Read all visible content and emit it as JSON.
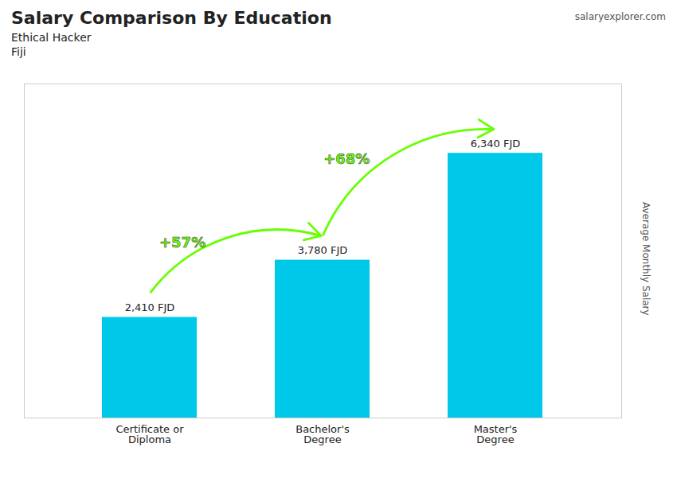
{
  "chart_data": {
    "type": "bar",
    "title": "Salary Comparison By Education",
    "subtitle": [
      "Ethical Hacker",
      "Fiji"
    ],
    "categories": [
      "Certificate or\nDiploma",
      "Bachelor's\nDegree",
      "Master's\nDegree"
    ],
    "values": [
      2410,
      3780,
      6340
    ],
    "value_labels": [
      "2,410 FJD",
      "3,780 FJD",
      "6,340 FJD"
    ],
    "data_labels": true,
    "color": "#00c8e8",
    "ylabel": "Average Monthly Salary",
    "ylim": [
      0,
      8000
    ],
    "grid": false,
    "tick_labels": "x",
    "annotations": [
      {
        "text": "+57%",
        "from": "Certificate or\nDiploma",
        "to": "Bachelor's\nDegree",
        "color": "#66ff00"
      },
      {
        "text": "+68%",
        "from": "Bachelor's\nDegree",
        "to": "Master's\nDegree",
        "color": "#66ff00"
      },
      {
        "text": "salaryexplorer.com"
      }
    ]
  }
}
